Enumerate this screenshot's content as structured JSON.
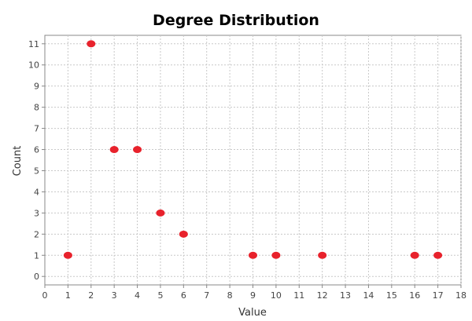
{
  "chart_data": {
    "type": "scatter",
    "title": "Degree Distribution",
    "xlabel": "Value",
    "ylabel": "Count",
    "xlim": [
      0,
      18
    ],
    "ylim": [
      0,
      11
    ],
    "x_ticks": [
      0,
      1,
      2,
      3,
      4,
      5,
      6,
      7,
      8,
      9,
      10,
      11,
      12,
      13,
      14,
      15,
      16,
      17,
      18
    ],
    "y_ticks": [
      0,
      1,
      2,
      3,
      4,
      5,
      6,
      7,
      8,
      9,
      10,
      11
    ],
    "grid": true,
    "series": [
      {
        "color": "#e8222c",
        "points": [
          {
            "x": 1,
            "y": 1
          },
          {
            "x": 2,
            "y": 11
          },
          {
            "x": 3,
            "y": 6
          },
          {
            "x": 4,
            "y": 6
          },
          {
            "x": 5,
            "y": 3
          },
          {
            "x": 6,
            "y": 2
          },
          {
            "x": 9,
            "y": 1
          },
          {
            "x": 10,
            "y": 1
          },
          {
            "x": 12,
            "y": 1
          },
          {
            "x": 16,
            "y": 1
          },
          {
            "x": 17,
            "y": 1
          }
        ]
      }
    ]
  }
}
